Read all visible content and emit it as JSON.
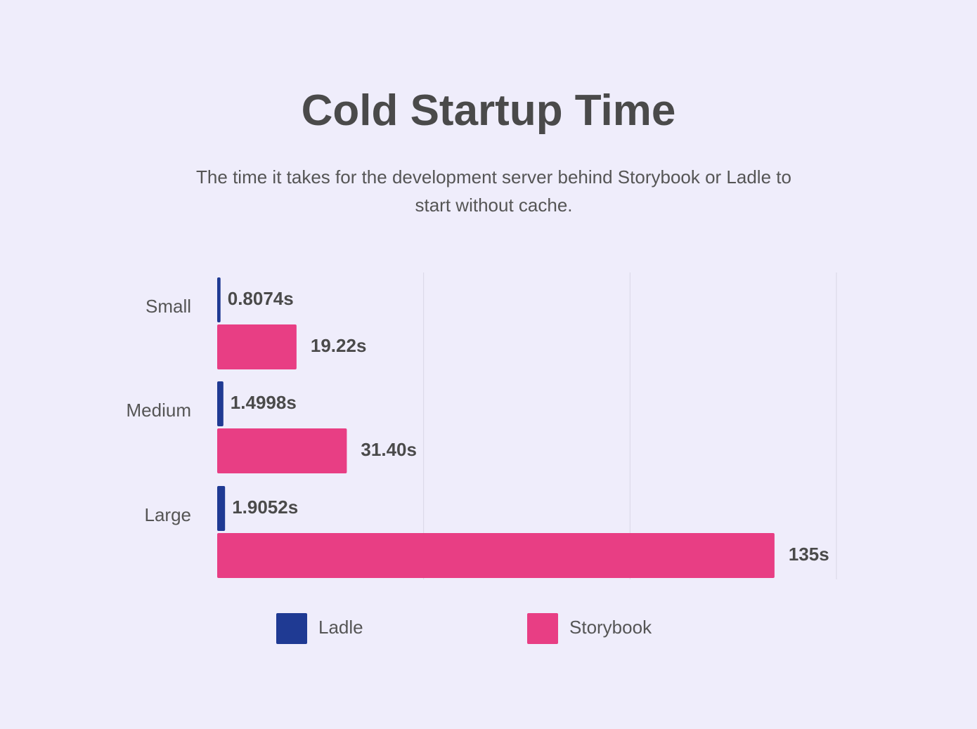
{
  "chart_data": {
    "type": "hbar",
    "title": "Cold Startup Time",
    "subtitle": "The time it takes for the development server behind Storybook or Ladle to start without cache.",
    "categories": [
      "Small",
      "Medium",
      "Large"
    ],
    "series": [
      {
        "name": "Ladle",
        "color": "#1f3a93",
        "values": [
          0.8074,
          1.4998,
          1.9052
        ],
        "value_labels": [
          "0.8074s",
          "1.4998s",
          "1.9052s"
        ]
      },
      {
        "name": "Storybook",
        "color": "#e83e84",
        "values": [
          19.22,
          31.4,
          135
        ],
        "value_labels": [
          "19.22s",
          "31.40s",
          "135s"
        ]
      }
    ],
    "xlim": [
      0,
      150
    ],
    "xticks": [
      50,
      100,
      150
    ],
    "grid": true
  }
}
